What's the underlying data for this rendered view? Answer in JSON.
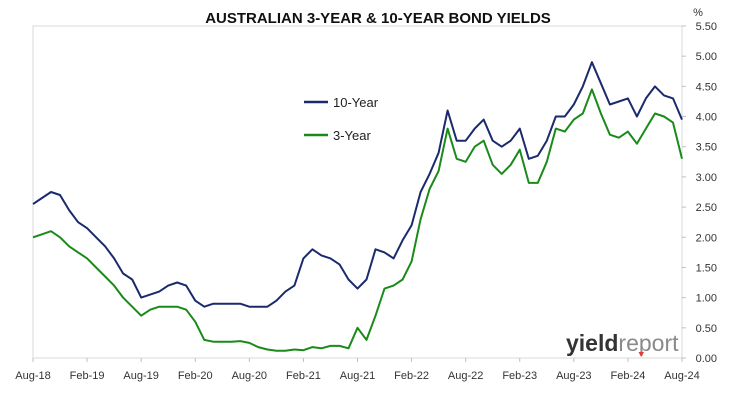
{
  "chart_data": {
    "type": "line",
    "title": "AUSTRALIAN 3-YEAR & 10-YEAR BOND YIELDS",
    "unit_label": "%",
    "xlabel": "",
    "ylabel": "",
    "ylim": [
      0,
      5.5
    ],
    "y_ticks": [
      "0.00",
      "0.50",
      "1.00",
      "1.50",
      "2.00",
      "2.50",
      "3.00",
      "3.50",
      "4.00",
      "4.50",
      "5.00",
      "5.50"
    ],
    "x_ticks": [
      "Aug-18",
      "Feb-19",
      "Aug-19",
      "Feb-20",
      "Aug-20",
      "Feb-21",
      "Aug-21",
      "Feb-22",
      "Aug-22",
      "Feb-23",
      "Aug-23",
      "Feb-24",
      "Aug-24"
    ],
    "x_domain": [
      "2018-08",
      "2024-08"
    ],
    "x": [
      "2018-08",
      "2018-09",
      "2018-10",
      "2018-11",
      "2018-12",
      "2019-01",
      "2019-02",
      "2019-03",
      "2019-04",
      "2019-05",
      "2019-06",
      "2019-07",
      "2019-08",
      "2019-09",
      "2019-10",
      "2019-11",
      "2019-12",
      "2020-01",
      "2020-02",
      "2020-03",
      "2020-04",
      "2020-05",
      "2020-06",
      "2020-07",
      "2020-08",
      "2020-09",
      "2020-10",
      "2020-11",
      "2020-12",
      "2021-01",
      "2021-02",
      "2021-03",
      "2021-04",
      "2021-05",
      "2021-06",
      "2021-07",
      "2021-08",
      "2021-09",
      "2021-10",
      "2021-11",
      "2021-12",
      "2022-01",
      "2022-02",
      "2022-03",
      "2022-04",
      "2022-05",
      "2022-06",
      "2022-07",
      "2022-08",
      "2022-09",
      "2022-10",
      "2022-11",
      "2022-12",
      "2023-01",
      "2023-02",
      "2023-03",
      "2023-04",
      "2023-05",
      "2023-06",
      "2023-07",
      "2023-08",
      "2023-09",
      "2023-10",
      "2023-11",
      "2023-12",
      "2024-01",
      "2024-02",
      "2024-03",
      "2024-04",
      "2024-05",
      "2024-06",
      "2024-07",
      "2024-08"
    ],
    "series": [
      {
        "name": "10-Year",
        "color": "#1a2a6c",
        "values": [
          2.55,
          2.65,
          2.75,
          2.7,
          2.45,
          2.25,
          2.15,
          2.0,
          1.85,
          1.65,
          1.4,
          1.3,
          1.0,
          1.05,
          1.1,
          1.2,
          1.25,
          1.2,
          0.95,
          0.85,
          0.9,
          0.9,
          0.9,
          0.9,
          0.85,
          0.85,
          0.85,
          0.95,
          1.1,
          1.2,
          1.65,
          1.8,
          1.7,
          1.65,
          1.55,
          1.3,
          1.15,
          1.3,
          1.8,
          1.75,
          1.65,
          1.95,
          2.2,
          2.75,
          3.05,
          3.4,
          4.1,
          3.6,
          3.6,
          3.8,
          3.95,
          3.6,
          3.5,
          3.6,
          3.8,
          3.3,
          3.35,
          3.6,
          4.0,
          4.0,
          4.2,
          4.5,
          4.9,
          4.55,
          4.2,
          4.25,
          4.3,
          4.0,
          4.3,
          4.5,
          4.35,
          4.3,
          3.95
        ]
      },
      {
        "name": "3-Year",
        "color": "#1a8a1a",
        "values": [
          2.0,
          2.05,
          2.1,
          2.0,
          1.85,
          1.75,
          1.65,
          1.5,
          1.35,
          1.2,
          1.0,
          0.85,
          0.7,
          0.8,
          0.85,
          0.85,
          0.85,
          0.8,
          0.6,
          0.3,
          0.27,
          0.27,
          0.27,
          0.28,
          0.25,
          0.18,
          0.14,
          0.12,
          0.12,
          0.14,
          0.13,
          0.18,
          0.16,
          0.2,
          0.2,
          0.16,
          0.5,
          0.3,
          0.7,
          1.15,
          1.2,
          1.3,
          1.6,
          2.3,
          2.8,
          3.1,
          3.8,
          3.3,
          3.25,
          3.5,
          3.6,
          3.2,
          3.05,
          3.2,
          3.45,
          2.9,
          2.9,
          3.25,
          3.8,
          3.75,
          3.95,
          4.05,
          4.45,
          4.05,
          3.7,
          3.65,
          3.75,
          3.55,
          3.8,
          4.05,
          4.0,
          3.9,
          3.3
        ]
      }
    ],
    "grid": false,
    "legend_position": "upper-center"
  },
  "watermark": {
    "logo_dark": "yield",
    "logo_light": "report",
    "accent_color": "#e53935"
  }
}
